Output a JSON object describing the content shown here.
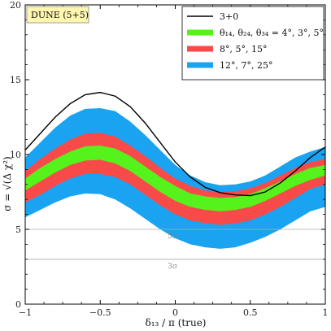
{
  "chart_data": {
    "type": "area",
    "title_tag": "DUNE (5+5)",
    "xlabel": "δ₁₃ / π (true)",
    "ylabel": "σ = √(Δ χ²)",
    "xlim": [
      -1,
      1
    ],
    "ylim": [
      0,
      20
    ],
    "x_ticks": [
      -1,
      -0.5,
      0,
      0.5,
      1
    ],
    "x_tick_labels": [
      "−1",
      "−0.5",
      "0",
      "0.5",
      "1"
    ],
    "y_ticks": [
      0,
      5,
      10,
      15,
      20
    ],
    "y_tick_labels": [
      "0",
      "5",
      "10",
      "15",
      "20"
    ],
    "grid": false,
    "legend_position": "top-right",
    "reference_lines": [
      {
        "y": 5,
        "label": "5σ"
      },
      {
        "y": 3,
        "label": "3σ"
      }
    ],
    "x": [
      -1.0,
      -0.9,
      -0.8,
      -0.7,
      -0.6,
      -0.5,
      -0.4,
      -0.3,
      -0.2,
      -0.1,
      0.0,
      0.1,
      0.2,
      0.3,
      0.4,
      0.5,
      0.6,
      0.7,
      0.8,
      0.9,
      1.0
    ],
    "series": [
      {
        "name": "3+0",
        "kind": "line",
        "color": "#000000",
        "values": [
          10.3,
          11.4,
          12.5,
          13.4,
          14.0,
          14.15,
          13.9,
          13.2,
          12.1,
          10.8,
          9.5,
          8.5,
          7.8,
          7.45,
          7.3,
          7.25,
          7.5,
          8.1,
          8.9,
          9.8,
          10.5
        ]
      },
      {
        "name": "12°, 7°, 25°",
        "kind": "band",
        "color": "#1aa3f0",
        "lower": [
          5.8,
          6.3,
          6.8,
          7.2,
          7.4,
          7.35,
          7.0,
          6.4,
          5.7,
          5.0,
          4.4,
          4.0,
          3.8,
          3.7,
          3.8,
          4.1,
          4.5,
          5.0,
          5.6,
          6.2,
          6.5
        ],
        "upper": [
          9.8,
          10.8,
          11.8,
          12.6,
          13.05,
          13.1,
          12.9,
          12.2,
          11.3,
          10.3,
          9.3,
          8.6,
          8.15,
          7.95,
          8.0,
          8.2,
          8.6,
          9.2,
          9.8,
          10.2,
          10.5
        ]
      },
      {
        "name": "8°, 5°, 15°",
        "kind": "band",
        "color": "#f94a4a",
        "lower": [
          6.8,
          7.3,
          7.9,
          8.4,
          8.7,
          8.7,
          8.5,
          8.0,
          7.3,
          6.6,
          6.0,
          5.6,
          5.4,
          5.3,
          5.4,
          5.6,
          6.0,
          6.5,
          7.1,
          7.7,
          8.0
        ],
        "upper": [
          8.9,
          9.7,
          10.4,
          11.0,
          11.4,
          11.45,
          11.2,
          10.6,
          9.9,
          9.1,
          8.4,
          7.9,
          7.6,
          7.5,
          7.55,
          7.75,
          8.1,
          8.6,
          9.1,
          9.5,
          9.7
        ]
      },
      {
        "name": "θ₁₄, θ₂₄, θ₃₄ = 4°, 3°, 5°",
        "kind": "band",
        "color": "#55f21b",
        "lower": [
          7.6,
          8.2,
          8.8,
          9.3,
          9.6,
          9.65,
          9.4,
          8.9,
          8.2,
          7.5,
          6.9,
          6.5,
          6.3,
          6.2,
          6.3,
          6.5,
          6.9,
          7.4,
          7.9,
          8.3,
          8.6
        ],
        "upper": [
          8.4,
          9.1,
          9.7,
          10.2,
          10.55,
          10.6,
          10.4,
          9.9,
          9.2,
          8.5,
          7.9,
          7.4,
          7.2,
          7.1,
          7.15,
          7.35,
          7.75,
          8.2,
          8.7,
          9.1,
          9.3
        ]
      }
    ],
    "legend_entries": [
      {
        "label": "3+0",
        "color": "#000000",
        "kind": "line"
      },
      {
        "label": "θ₁₄, θ₂₄, θ₃₄ = 4°, 3°, 5°",
        "color": "#55f21b",
        "kind": "band"
      },
      {
        "label": "8°, 5°, 15°",
        "color": "#f94a4a",
        "kind": "band"
      },
      {
        "label": "12°, 7°, 25°",
        "color": "#1aa3f0",
        "kind": "band"
      }
    ]
  },
  "colors": {
    "tag_background": "#fff6b0",
    "axis": "#000000",
    "reference_line": "#aaaaaa"
  }
}
